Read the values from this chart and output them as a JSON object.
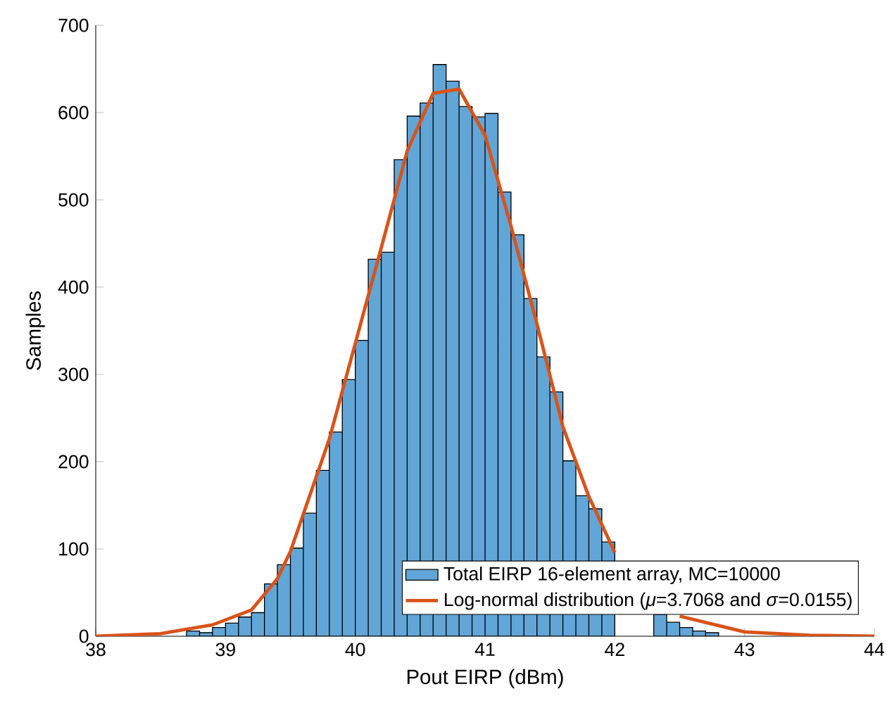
{
  "chart_data": {
    "type": "histogram",
    "xlabel": "Pout EIRP (dBm)",
    "ylabel": "Samples",
    "xlim": [
      38,
      44
    ],
    "xticks": [
      38,
      39,
      40,
      41,
      42,
      43,
      44
    ],
    "ylim": [
      0,
      700
    ],
    "yticks": [
      0,
      100,
      200,
      300,
      400,
      500,
      600,
      700
    ],
    "legend": "bottom right",
    "bins": [
      38.7,
      38.8,
      38.9,
      39.0,
      39.1,
      39.2,
      39.3,
      39.4,
      39.5,
      39.6,
      39.7,
      39.8,
      39.9,
      40.0,
      40.1,
      40.2,
      40.3,
      40.4,
      40.5,
      40.6,
      40.7,
      40.8,
      40.9,
      41.0,
      41.1,
      41.2,
      41.3,
      41.4,
      41.5,
      41.6,
      41.7,
      41.8,
      41.9,
      42.0,
      42.1,
      42.2,
      42.3,
      42.4,
      42.5,
      42.6,
      42.7,
      42.8
    ],
    "series": [
      {
        "name": "Total EIRP 16-element array, MC=10000",
        "color": "#62a6d8",
        "values": [
          6,
          4,
          10,
          15,
          22,
          27,
          60,
          82,
          101,
          141,
          190,
          234,
          294,
          339,
          432,
          440,
          546,
          596,
          611,
          655,
          636,
          607,
          595,
          599,
          509,
          460,
          387,
          320,
          280,
          201,
          161,
          146,
          108,
          null,
          null,
          null,
          25,
          16,
          10,
          6,
          4
        ]
      },
      {
        "name": "Log-normal distribution (*μ*=3.7068 and *σ*=0.0155)",
        "type": "line",
        "color": "#d95319",
        "x": [
          38,
          38.5,
          38.9,
          39.2,
          39.4,
          39.5,
          39.8,
          40.2,
          40.4,
          40.6,
          40.8,
          41.0,
          41.2,
          41.4,
          41.6,
          41.8,
          42.0,
          42.2,
          42.5,
          43.0,
          43.5,
          44
        ],
        "values": [
          0,
          3,
          13,
          30,
          66,
          97,
          226,
          445,
          556,
          622,
          627,
          574,
          470,
          358,
          240,
          160,
          96,
          null,
          23,
          5,
          1,
          0
        ]
      }
    ]
  }
}
